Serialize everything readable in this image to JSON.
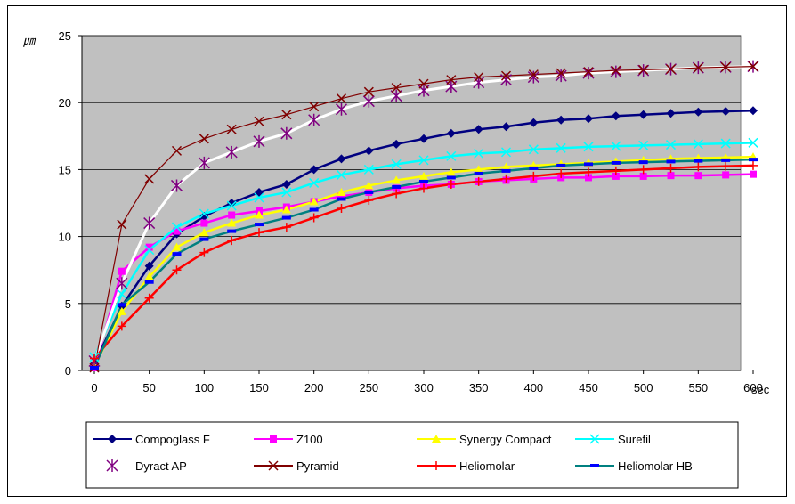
{
  "chart_data": {
    "type": "line",
    "ylabel": "㎛",
    "xlabel": "sec",
    "xlim": [
      0,
      600
    ],
    "ylim": [
      0,
      25
    ],
    "xticks": [
      0,
      50,
      100,
      150,
      200,
      250,
      300,
      350,
      400,
      450,
      500,
      550,
      600
    ],
    "yticks": [
      0,
      5,
      10,
      15,
      20,
      25
    ],
    "grid": "horizontal",
    "plot_background": "#c0c0c0",
    "legend_position": "bottom",
    "x": [
      0,
      25,
      50,
      75,
      100,
      125,
      150,
      175,
      200,
      225,
      250,
      275,
      300,
      325,
      350,
      375,
      400,
      425,
      450,
      475,
      500,
      525,
      550,
      575,
      600
    ],
    "series": [
      {
        "name": "Compoglass F",
        "color": "#000080",
        "marker": "diamond",
        "values": [
          0.5,
          4.8,
          7.8,
          10.2,
          11.5,
          12.5,
          13.3,
          13.9,
          15.0,
          15.8,
          16.4,
          16.9,
          17.3,
          17.7,
          18.0,
          18.2,
          18.5,
          18.7,
          18.8,
          19.0,
          19.1,
          19.2,
          19.3,
          19.35,
          19.4
        ]
      },
      {
        "name": "Z100",
        "color": "#ff00ff",
        "marker": "square",
        "values": [
          0.2,
          7.4,
          9.2,
          10.4,
          11.0,
          11.6,
          11.9,
          12.2,
          12.6,
          13.0,
          13.3,
          13.6,
          13.8,
          13.9,
          14.1,
          14.2,
          14.3,
          14.4,
          14.4,
          14.5,
          14.5,
          14.55,
          14.55,
          14.6,
          14.65
        ]
      },
      {
        "name": "Synergy Compact",
        "color": "#ffff00",
        "marker": "triangle",
        "values": [
          0.3,
          4.4,
          7.0,
          9.2,
          10.3,
          11.0,
          11.6,
          12.0,
          12.6,
          13.3,
          13.8,
          14.2,
          14.5,
          14.8,
          15.0,
          15.2,
          15.3,
          15.4,
          15.5,
          15.6,
          15.7,
          15.8,
          15.85,
          15.9,
          15.95
        ]
      },
      {
        "name": "Surefil",
        "color": "#00ffff",
        "marker": "x",
        "values": [
          1.0,
          5.7,
          9.0,
          10.7,
          11.7,
          12.3,
          12.9,
          13.3,
          14.0,
          14.6,
          15.0,
          15.4,
          15.7,
          16.0,
          16.2,
          16.3,
          16.5,
          16.6,
          16.7,
          16.75,
          16.8,
          16.85,
          16.9,
          16.95,
          17.0
        ]
      },
      {
        "name": "Dyract AP",
        "color": "#800080",
        "marker": "star",
        "values": [
          0.7,
          6.5,
          11.0,
          13.8,
          15.5,
          16.3,
          17.1,
          17.7,
          18.7,
          19.5,
          20.1,
          20.5,
          20.9,
          21.2,
          21.5,
          21.7,
          21.9,
          22.0,
          22.2,
          22.3,
          22.4,
          22.5,
          22.6,
          22.65,
          22.7
        ]
      },
      {
        "name": "Pyramid",
        "color": "#800000",
        "marker": "x",
        "values": [
          0.2,
          10.9,
          14.3,
          16.4,
          17.3,
          18.0,
          18.6,
          19.1,
          19.7,
          20.3,
          20.8,
          21.1,
          21.4,
          21.7,
          21.9,
          22.0,
          22.1,
          22.2,
          22.3,
          22.4,
          22.45,
          22.5,
          22.6,
          22.65,
          22.7
        ]
      },
      {
        "name": "Heliomolar",
        "color": "#ff0000",
        "marker": "plus",
        "values": [
          0.9,
          3.3,
          5.4,
          7.5,
          8.8,
          9.7,
          10.3,
          10.7,
          11.4,
          12.1,
          12.7,
          13.2,
          13.6,
          13.9,
          14.1,
          14.3,
          14.5,
          14.7,
          14.8,
          14.9,
          15.0,
          15.1,
          15.2,
          15.25,
          15.3
        ]
      },
      {
        "name": "Heliomolar HB",
        "color": "#008080",
        "marker": "dash",
        "values": [
          0.2,
          4.9,
          6.6,
          8.7,
          9.8,
          10.4,
          10.9,
          11.4,
          12.0,
          12.8,
          13.3,
          13.7,
          14.1,
          14.4,
          14.7,
          14.9,
          15.1,
          15.3,
          15.4,
          15.5,
          15.55,
          15.6,
          15.65,
          15.7,
          15.75
        ]
      }
    ]
  }
}
